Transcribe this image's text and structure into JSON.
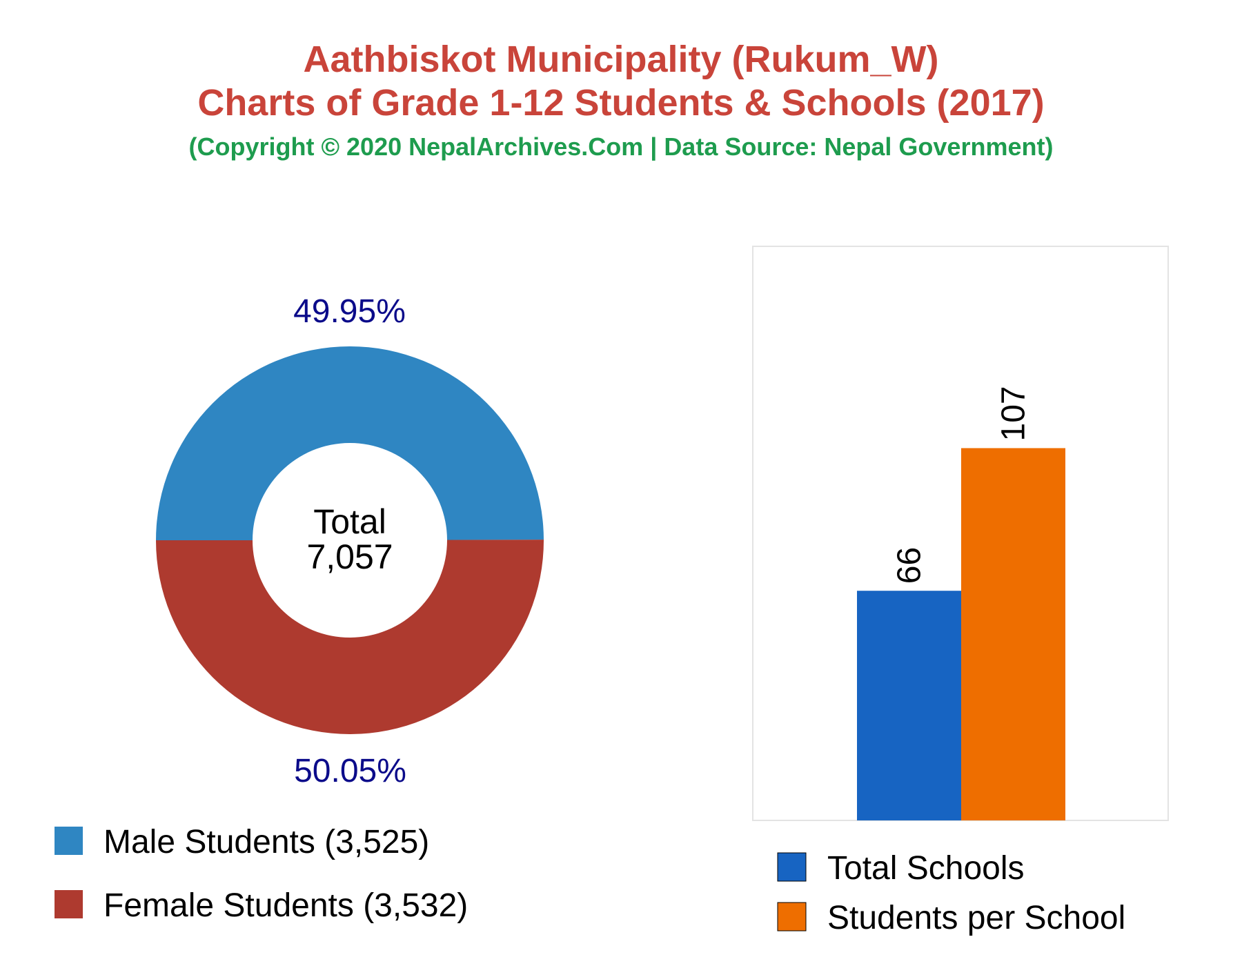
{
  "header": {
    "title_line1": "Aathbiskot Municipality (Rukum_W)",
    "title_line2": "Charts of Grade 1-12 Students & Schools (2017)",
    "subtitle": "(Copyright © 2020 NepalArchives.Com | Data Source: Nepal Government)",
    "title_color": "#c9443a",
    "subtitle_color": "#1e9c4e"
  },
  "chart_data": [
    {
      "type": "pie",
      "variant": "donut",
      "center_label_line1": "Total",
      "center_label_line2": "7,057",
      "percent_label_color": "#0b0b8a",
      "slices": [
        {
          "name": "Male Students",
          "value": 3525,
          "percent": 49.95,
          "percent_label": "49.95%",
          "legend_label": "Male Students (3,525)",
          "color": "#2f86c2"
        },
        {
          "name": "Female Students",
          "value": 3532,
          "percent": 50.05,
          "percent_label": "50.05%",
          "legend_label": "Female Students (3,532)",
          "color": "#ae3a2f"
        }
      ],
      "legend_position": "bottom-left"
    },
    {
      "type": "bar",
      "categories": [
        "Total Schools",
        "Students per School"
      ],
      "values": [
        66,
        107
      ],
      "value_labels": [
        "66",
        "107"
      ],
      "colors": [
        "#1764c2",
        "#ee6e00"
      ],
      "ylim": [
        0,
        165
      ],
      "grid": false,
      "legend_position": "bottom",
      "legend": [
        "Total Schools",
        "Students per School"
      ]
    }
  ]
}
